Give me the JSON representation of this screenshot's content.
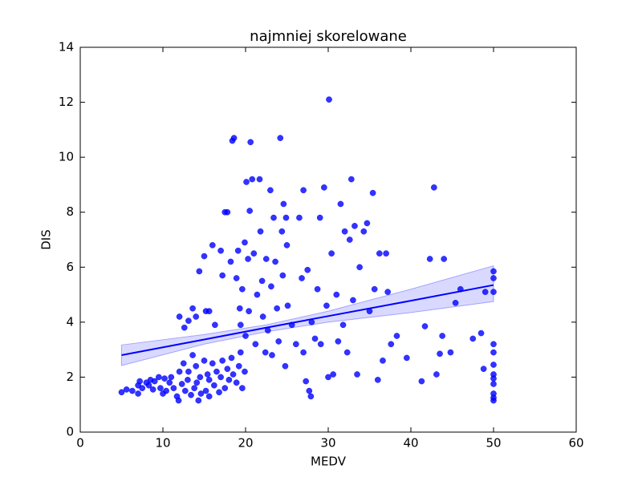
{
  "chart_data": {
    "type": "scatter",
    "title": "najmniej skorelowane",
    "x_label": "MEDV",
    "y_label": "DIS",
    "xlim": [
      0,
      60
    ],
    "ylim": [
      0,
      14
    ],
    "xticks": [
      0,
      10,
      20,
      30,
      40,
      50,
      60
    ],
    "yticks": [
      0,
      2,
      4,
      6,
      8,
      10,
      12,
      14
    ],
    "series": [
      {
        "color": "#0000ff",
        "x": [
          5,
          5.6,
          6.3,
          7,
          7,
          7.2,
          7.5,
          8,
          8.3,
          8.5,
          8.8,
          9,
          9.5,
          9.7,
          10,
          10.2,
          10.4,
          10.8,
          11,
          11.3,
          11.7,
          11.9,
          12,
          12.3,
          12.5,
          12.7,
          13,
          13.1,
          13.4,
          13.6,
          13.8,
          14,
          14.1,
          14.3,
          14.5,
          14.6,
          15,
          15.2,
          15.4,
          15.6,
          15.6,
          16,
          16.2,
          16.5,
          16.8,
          17,
          17.2,
          17.5,
          17.8,
          18,
          18.3,
          18.5,
          18.9,
          19.2,
          19.4,
          19.6,
          19.9,
          12,
          12.6,
          13.1,
          13.6,
          14,
          14.4,
          15,
          15.2,
          15.6,
          16,
          16.3,
          17,
          17.2,
          17.5,
          17.8,
          18.2,
          18.4,
          18.6,
          18.9,
          19.1,
          19.3,
          19.4,
          19.6,
          19.9,
          20,
          20.1,
          20.3,
          20.4,
          20.5,
          20.6,
          20.8,
          21,
          21.2,
          21.4,
          21.7,
          21.8,
          22,
          22.1,
          22.4,
          22.5,
          22.7,
          23,
          23.1,
          23.2,
          23.4,
          23.6,
          23.8,
          24,
          24.2,
          24.4,
          24.5,
          24.6,
          24.8,
          24.9,
          25,
          25.1,
          25.6,
          26.1,
          26.5,
          26.8,
          27,
          27,
          27.3,
          27.5,
          27.7,
          27.9,
          28,
          28.4,
          28.7,
          29,
          29.1,
          29.5,
          29.8,
          30,
          30.1,
          30.4,
          30.6,
          31,
          31.2,
          31.5,
          31.8,
          32,
          32.3,
          32.6,
          32.8,
          33,
          33.2,
          33.5,
          33.8,
          34.3,
          34.7,
          35,
          35.4,
          35.6,
          36,
          36.2,
          36.6,
          37,
          37.2,
          37.6,
          38.3,
          39.5,
          41.3,
          41.7,
          42.3,
          42.8,
          43.1,
          43.5,
          43.8,
          44,
          44.8,
          45.4,
          46,
          47.5,
          48.5,
          48.8,
          49,
          50,
          50,
          50,
          50,
          50,
          50,
          50,
          50,
          50,
          50,
          50,
          50
        ],
        "values": [
          1.45,
          1.55,
          1.5,
          1.7,
          1.4,
          1.85,
          1.6,
          1.8,
          1.7,
          1.9,
          1.55,
          1.85,
          2.0,
          1.6,
          1.4,
          1.95,
          1.5,
          1.8,
          2.0,
          1.6,
          1.3,
          1.15,
          2.2,
          1.75,
          2.5,
          1.5,
          1.9,
          2.2,
          1.35,
          2.8,
          1.6,
          2.4,
          1.8,
          1.15,
          2.0,
          1.4,
          2.6,
          1.5,
          2.1,
          1.3,
          1.9,
          2.5,
          1.7,
          2.2,
          1.45,
          2.0,
          2.6,
          1.6,
          2.3,
          1.9,
          2.7,
          2.1,
          1.8,
          2.4,
          2.9,
          1.6,
          2.2,
          4.2,
          3.8,
          4.05,
          4.5,
          4.2,
          5.85,
          6.4,
          4.4,
          4.4,
          6.8,
          3.9,
          6.6,
          5.7,
          8.0,
          8.0,
          6.2,
          10.6,
          10.7,
          5.6,
          6.6,
          4.5,
          3.9,
          5.2,
          6.9,
          3.5,
          9.1,
          6.3,
          4.4,
          8.05,
          10.55,
          9.2,
          6.5,
          3.2,
          5.0,
          9.2,
          7.3,
          5.5,
          4.2,
          2.9,
          6.3,
          3.7,
          8.8,
          5.3,
          2.8,
          7.8,
          6.2,
          4.5,
          3.3,
          10.7,
          7.3,
          5.7,
          8.3,
          2.4,
          7.8,
          6.8,
          4.6,
          3.9,
          3.2,
          7.8,
          5.6,
          8.8,
          2.9,
          1.85,
          5.9,
          1.5,
          1.3,
          4.0,
          3.4,
          5.2,
          7.8,
          3.2,
          8.9,
          4.6,
          2.0,
          12.1,
          6.5,
          2.1,
          5.0,
          3.3,
          8.3,
          3.9,
          7.3,
          2.9,
          7.0,
          9.2,
          4.8,
          7.5,
          2.1,
          6.0,
          7.3,
          7.6,
          4.4,
          8.7,
          5.2,
          1.9,
          6.5,
          2.6,
          6.5,
          5.1,
          3.2,
          3.5,
          2.7,
          1.85,
          3.85,
          6.3,
          8.9,
          2.1,
          2.85,
          3.5,
          6.3,
          2.9,
          4.7,
          5.2,
          3.4,
          3.6,
          2.3,
          5.1,
          5.85,
          5.6,
          5.1,
          3.2,
          2.9,
          2.45,
          2.1,
          1.95,
          1.75,
          1.4,
          1.25,
          1.15
        ]
      }
    ],
    "regression": {
      "color": "#0000ff",
      "x": [
        5,
        15,
        22.5,
        30,
        40,
        50
      ],
      "values": [
        2.8,
        3.37,
        3.8,
        4.22,
        4.78,
        5.35
      ],
      "lower": [
        2.42,
        3.2,
        3.65,
        4.0,
        4.35,
        4.75
      ],
      "upper": [
        3.17,
        3.55,
        3.9,
        4.4,
        5.2,
        6.05
      ]
    }
  }
}
